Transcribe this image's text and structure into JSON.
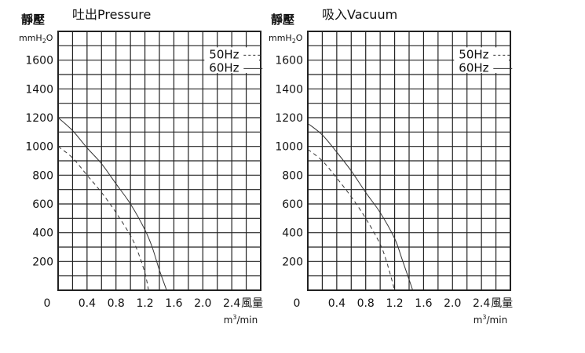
{
  "chart_data": [
    {
      "type": "line",
      "title": "吐出Pressure",
      "ylabel": "靜壓",
      "yunit": "mmH",
      "yunit_sub": "2",
      "yunit_tail": "O",
      "xlabel": "風量",
      "xunit": "m",
      "xunit_sup": "3",
      "xunit_tail": "/min",
      "xlim": [
        0,
        2.8
      ],
      "ylim": [
        0,
        1800
      ],
      "x_ticks": [
        0.4,
        0.8,
        1.2,
        1.6,
        2.0,
        2.4
      ],
      "x_tick_labels": [
        "0.4",
        "0.8",
        "1.2",
        "1.6",
        "2.0",
        "2.4"
      ],
      "y_ticks": [
        200,
        400,
        600,
        800,
        1000,
        1200,
        1400,
        1600
      ],
      "y_tick_labels": [
        "200",
        "400",
        "600",
        "800",
        "1000",
        "1200",
        "1400",
        "1600"
      ],
      "origin_label": "0",
      "grid": true,
      "legend_position": "top-right",
      "series": [
        {
          "name": "50Hz",
          "style": "dashed",
          "x": [
            0,
            0.2,
            0.4,
            0.6,
            0.8,
            1.0,
            1.1,
            1.2,
            1.25
          ],
          "y": [
            1000,
            920,
            800,
            680,
            540,
            380,
            270,
            120,
            0
          ]
        },
        {
          "name": "60Hz",
          "style": "solid",
          "x": [
            0,
            0.2,
            0.4,
            0.6,
            0.8,
            1.0,
            1.2,
            1.3,
            1.4,
            1.5
          ],
          "y": [
            1200,
            1110,
            990,
            880,
            740,
            600,
            420,
            300,
            140,
            0
          ]
        }
      ]
    },
    {
      "type": "line",
      "title": "吸入Vacuum",
      "ylabel": "靜壓",
      "yunit": "mmH",
      "yunit_sub": "2",
      "yunit_tail": "O",
      "xlabel": "風量",
      "xunit": "m",
      "xunit_sup": "3",
      "xunit_tail": "/min",
      "xlim": [
        0,
        2.8
      ],
      "ylim": [
        0,
        1800
      ],
      "x_ticks": [
        0.4,
        0.8,
        1.2,
        1.6,
        2.0,
        2.4
      ],
      "x_tick_labels": [
        "0.4",
        "0.8",
        "1.2",
        "1.6",
        "2.0",
        "2.4"
      ],
      "y_ticks": [
        200,
        400,
        600,
        800,
        1000,
        1200,
        1400,
        1600
      ],
      "y_tick_labels": [
        "200",
        "400",
        "600",
        "800",
        "1000",
        "1200",
        "1400",
        "1600"
      ],
      "origin_label": "0",
      "grid": true,
      "legend_position": "top-right",
      "series": [
        {
          "name": "50Hz",
          "style": "dashed",
          "x": [
            0,
            0.2,
            0.4,
            0.6,
            0.8,
            1.0,
            1.1,
            1.2
          ],
          "y": [
            980,
            900,
            780,
            650,
            500,
            320,
            180,
            0
          ]
        },
        {
          "name": "60Hz",
          "style": "solid",
          "x": [
            0,
            0.2,
            0.4,
            0.6,
            0.8,
            1.0,
            1.2,
            1.3,
            1.45
          ],
          "y": [
            1160,
            1080,
            960,
            830,
            680,
            540,
            360,
            220,
            0
          ]
        }
      ]
    }
  ]
}
